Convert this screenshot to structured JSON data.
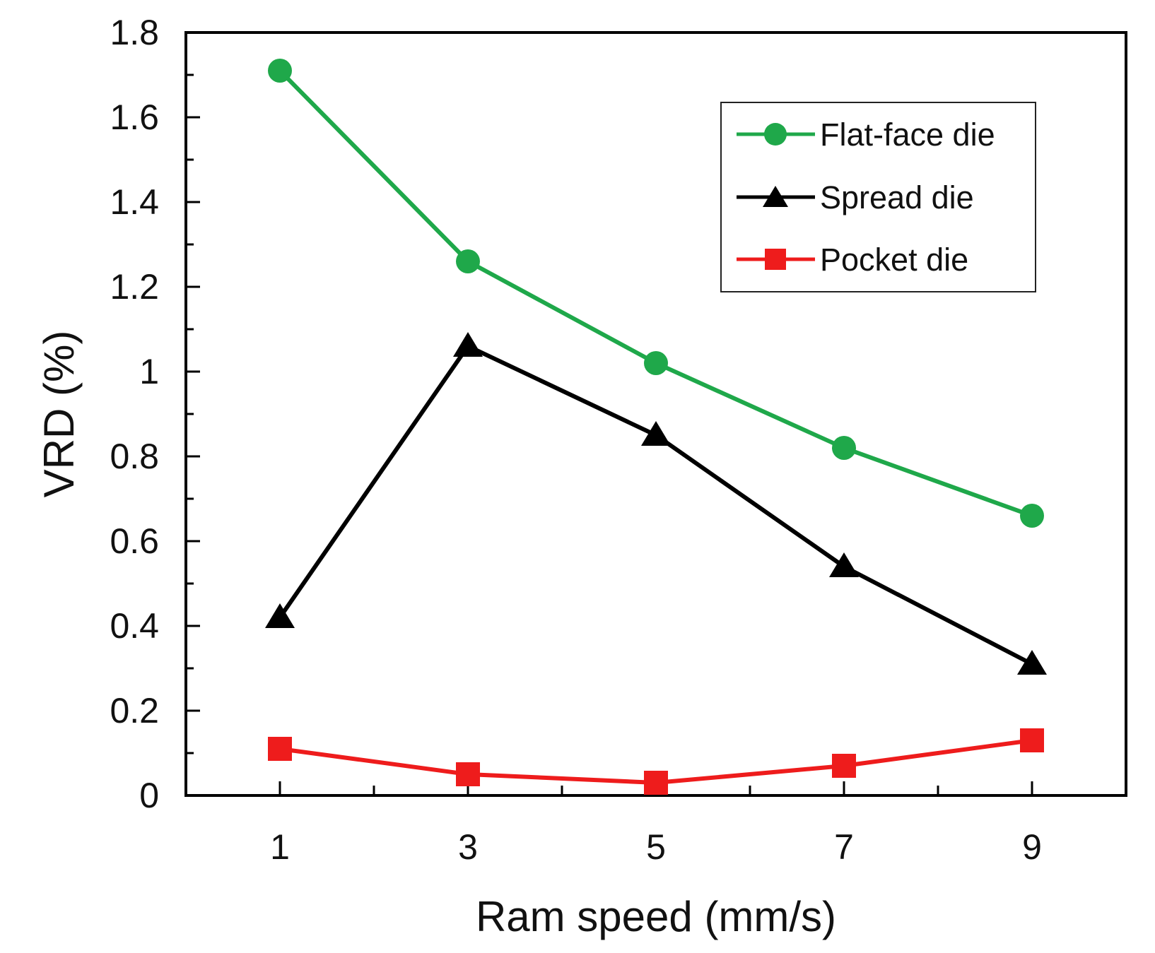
{
  "chart_data": {
    "type": "line",
    "title": "",
    "xlabel": "Ram speed (mm/s)",
    "ylabel": "VRD (%)",
    "xlim": [
      0,
      10
    ],
    "ylim": [
      0,
      1.8
    ],
    "x": [
      1,
      3,
      5,
      7,
      9
    ],
    "xticks": [
      1,
      3,
      5,
      7,
      9
    ],
    "xtick_labels": [
      "1",
      "3",
      "5",
      "7",
      "9"
    ],
    "x_minor_ticks": [
      2,
      4,
      6,
      8
    ],
    "yticks": [
      0,
      0.2,
      0.4,
      0.6,
      0.8,
      1,
      1.2,
      1.4,
      1.6,
      1.8
    ],
    "ytick_labels": [
      "0",
      "0.2",
      "0.4",
      "0.6",
      "0.8",
      "1",
      "1.2",
      "1.4",
      "1.6",
      "1.8"
    ],
    "y_minor_ticks": [
      0.1,
      0.3,
      0.5,
      0.7,
      0.9,
      1.1,
      1.3,
      1.5,
      1.7
    ],
    "grid": false,
    "legend_position": "top-right",
    "series": [
      {
        "name": "Flat-face die",
        "marker": "circle",
        "color": "#1fa84a",
        "values": [
          1.71,
          1.26,
          1.02,
          0.82,
          0.66
        ]
      },
      {
        "name": "Spread die",
        "marker": "triangle",
        "color": "#000000",
        "values": [
          0.42,
          1.06,
          0.85,
          0.54,
          0.31
        ]
      },
      {
        "name": "Pocket die",
        "marker": "square",
        "color": "#ee1c1c",
        "values": [
          0.11,
          0.05,
          0.03,
          0.07,
          0.13
        ]
      }
    ]
  }
}
